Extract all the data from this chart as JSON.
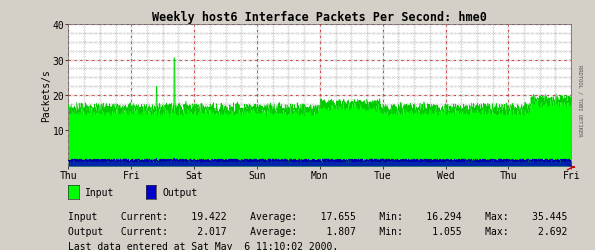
{
  "title": "Weekly host6 Interface Packets Per Second: hme0",
  "ylabel": "Packets/s",
  "bg_color": "#d4d0c8",
  "plot_bg_color": "#ffffff",
  "ylim": [
    0,
    40
  ],
  "yticks": [
    10,
    20,
    30,
    40
  ],
  "x_day_labels": [
    "Thu",
    "Fri",
    "Sat",
    "Sun",
    "Mon",
    "Tue",
    "Wed",
    "Thu",
    "Fri"
  ],
  "input_color": "#00ff00",
  "output_color": "#0000cc",
  "legend_input": "Input",
  "legend_output": "Output",
  "stats_line1": "Input    Current:    19.422    Average:    17.655    Min:    16.294    Max:    35.445",
  "stats_line2": "Output   Current:     2.017    Average:     1.807    Min:     1.055    Max:     2.692",
  "last_data": "Last data entered at Sat May  6 11:10:02 2000.",
  "right_label": "RRDTOOL / TOBI OETIKER",
  "grid_major_color": "#cc3333",
  "grid_minor_color": "#999999",
  "arrow_color": "#cc0000"
}
